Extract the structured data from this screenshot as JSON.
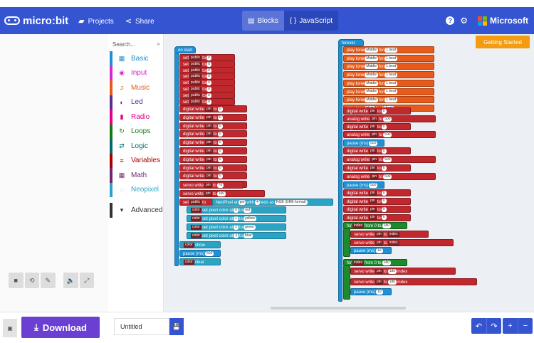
{
  "header": {
    "logo": "micro:bit",
    "projects": "Projects",
    "share": "Share",
    "blocks_tab": "Blocks",
    "javascript_tab": "JavaScript",
    "brand": "Microsoft",
    "help": "?",
    "settings": "⚙"
  },
  "toolbox": {
    "search_placeholder": "Search...",
    "search_icon": "⌕",
    "categories": [
      {
        "label": "Basic",
        "icon": "▦",
        "color": "#1e90d6"
      },
      {
        "label": "Input",
        "icon": "◉",
        "color": "#d62ad0"
      },
      {
        "label": "Music",
        "icon": "♫",
        "color": "#e65b1c"
      },
      {
        "label": "Led",
        "icon": "◐",
        "color": "#5c2d91"
      },
      {
        "label": "Radio",
        "icon": "▮",
        "color": "#e3008c"
      },
      {
        "label": "Loops",
        "icon": "↻",
        "color": "#107c10"
      },
      {
        "label": "Logic",
        "icon": "⇄",
        "color": "#006970"
      },
      {
        "label": "Variables",
        "icon": "≡",
        "color": "#a80000"
      },
      {
        "label": "Math",
        "icon": "▦",
        "color": "#712672"
      },
      {
        "label": "Neopixel",
        "icon": "◌",
        "color": "#2aa3c5"
      }
    ],
    "advanced": "Advanced",
    "advanced_icon": "▾"
  },
  "workspace": {
    "getting_started": "Getting Started",
    "on_start": "on start",
    "forever": "forever",
    "set_label": "set",
    "to_label": "to",
    "pubvar": "public",
    "digital": "digital write",
    "analog": "analog write",
    "servo": "servo write",
    "pin_word": "pin",
    "pause": "pause (ms)",
    "pause1": "500",
    "pause2": "500",
    "pause3": "10",
    "playtone": "play tone",
    "middle": "Middle",
    "high": "High",
    "for_word": "for",
    "beat": "1 beat",
    "for_index": "for",
    "index": "index",
    "from0": "from 0 to",
    "do": "do",
    "n180": "180",
    "set_strip": "set",
    "neopixel_at": "NeoPixel at",
    "with": "with",
    "leds_as": "leds as",
    "rgb": "RGB (GRB format)",
    "n4": "4",
    "color": "color",
    "set_pixel": "set pixel color at",
    "red": "red",
    "yellow": "yellow",
    "green": "green",
    "blue": "blue",
    "show": "show",
    "clear": "clear",
    "zero": "0",
    "one": "1",
    "n500": "500",
    "n2": "2",
    "n3": "3",
    "n70": "70",
    "n100": "100"
  },
  "simulator": {
    "stop": "■",
    "restart": "⟲",
    "debug": "✎",
    "mute": "🔈",
    "fullscreen": "⤢"
  },
  "footer": {
    "download": "Download",
    "download_icon": "⤓",
    "project_name": "Untitled",
    "save_icon": "💾",
    "undo": "↶",
    "redo": "↷",
    "zoom_in": "+",
    "zoom_out": "−",
    "collapse": "▣"
  }
}
